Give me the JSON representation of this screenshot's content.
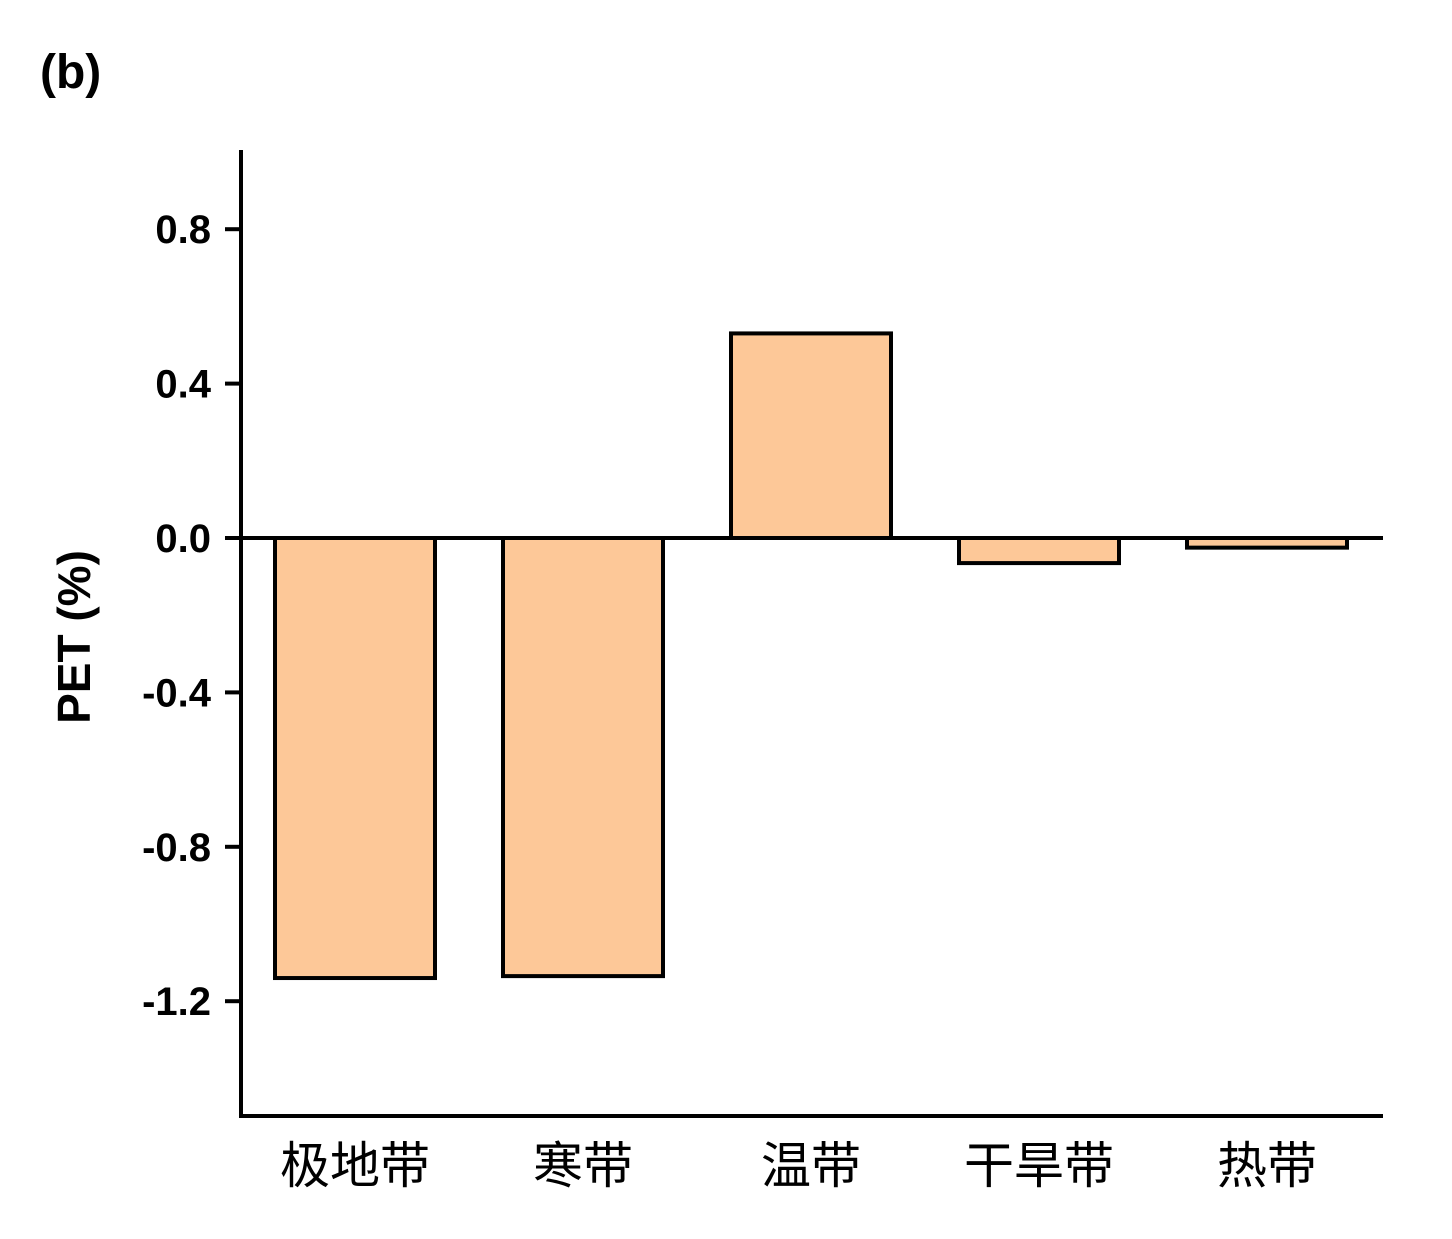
{
  "panel_label": "(b)",
  "chart_data": {
    "type": "bar",
    "categories": [
      "极地带",
      "寒带",
      "温带",
      "干旱带",
      "热带"
    ],
    "values": [
      -1.14,
      -1.135,
      0.53,
      -0.065,
      -0.025
    ],
    "title": "",
    "xlabel": "",
    "ylabel": "PET (%)",
    "ylim": [
      -1.5,
      1.0
    ],
    "yticks": [
      0.8,
      0.4,
      0.0,
      -0.4,
      -0.8,
      -1.2
    ],
    "ytick_labels": [
      "0.8",
      "0.4",
      "0.0",
      "-0.4",
      "-0.8",
      "-1.2"
    ],
    "bar_color": "#FDC898",
    "edge_color": "#000000",
    "grid": false,
    "legend": "none"
  }
}
